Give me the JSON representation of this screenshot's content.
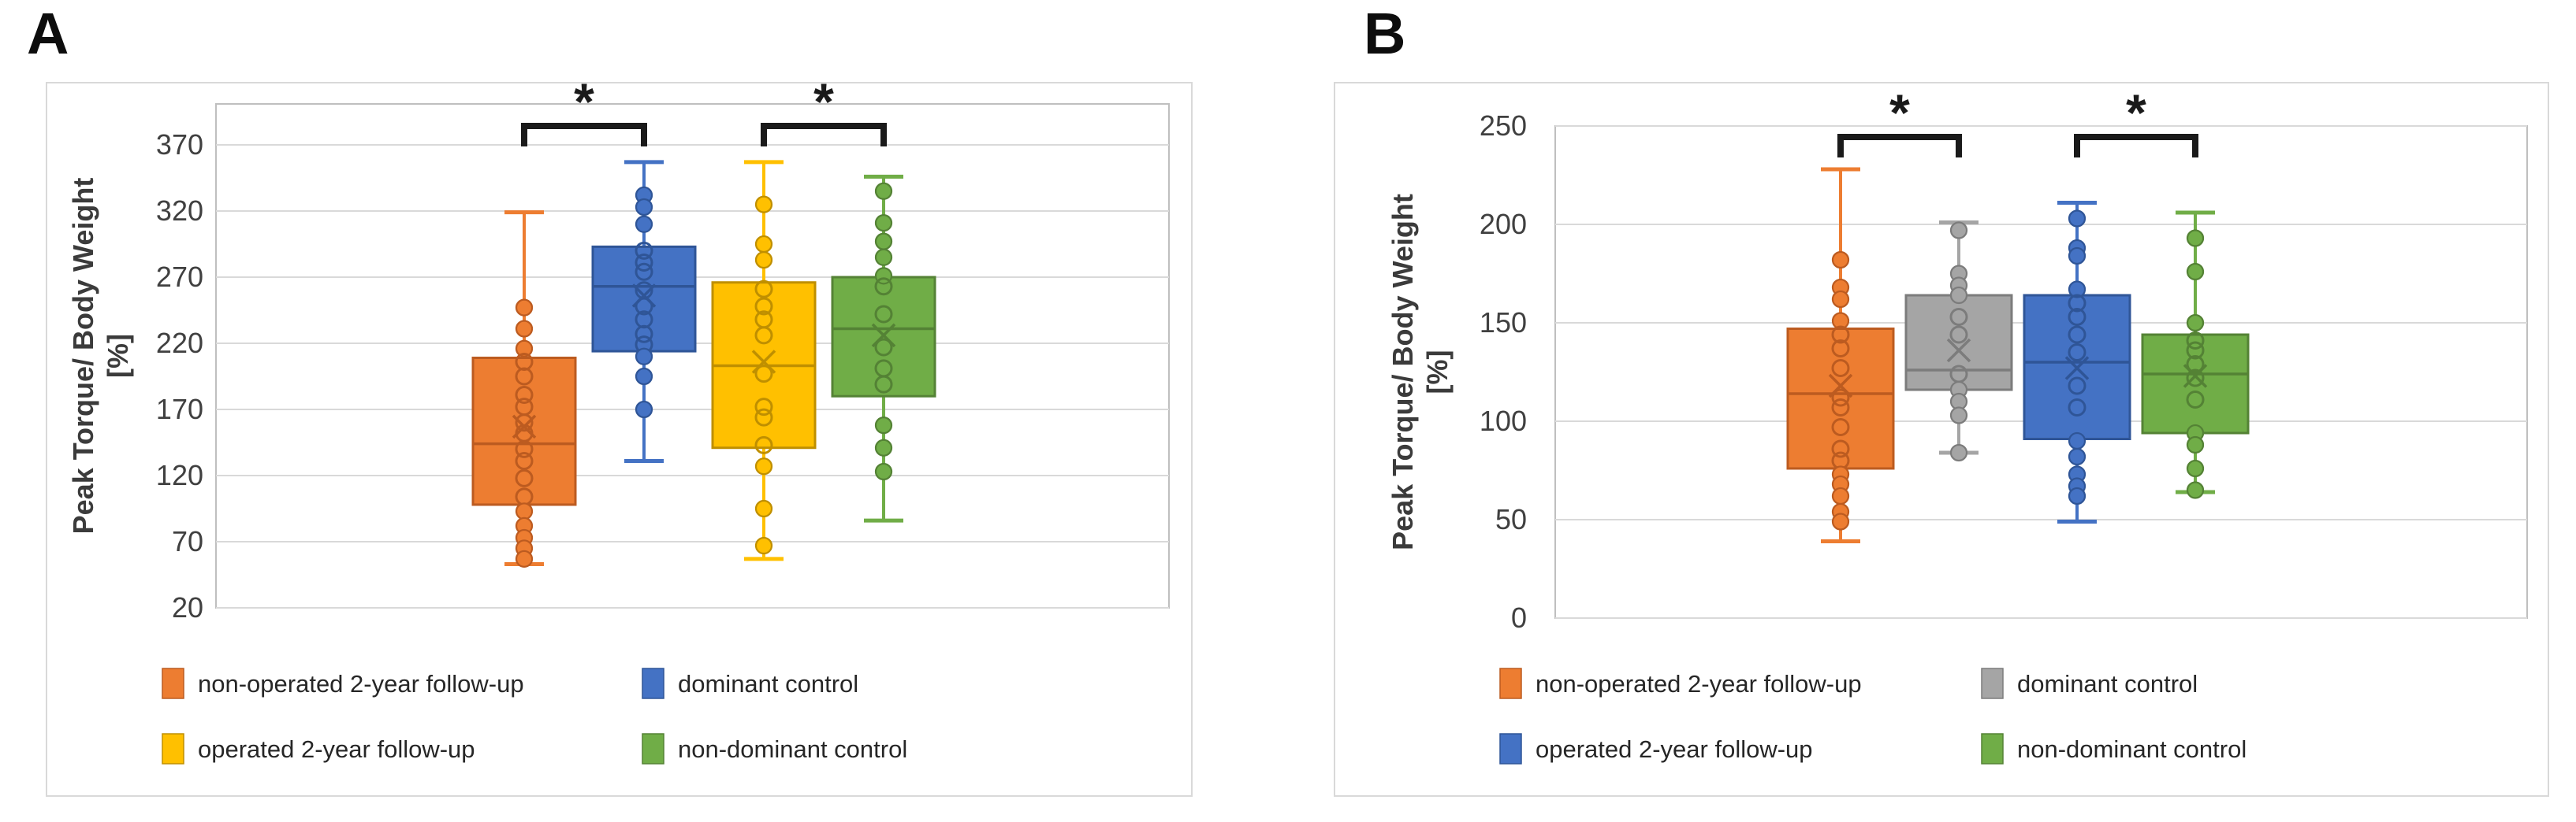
{
  "chart_data": [
    {
      "type": "boxplot",
      "panel_label": "A",
      "ylabel": "Peak Torque/ Body Weight",
      "ylabel_units": "[%]",
      "yticks": [
        370,
        320,
        270,
        220,
        170,
        120,
        70,
        20
      ],
      "ylim": [
        20,
        370
      ],
      "grid": true,
      "legend_position": "bottom",
      "series": [
        {
          "name": "non-operated 2-year follow-up",
          "fill": "#ED7D31",
          "stroke": "#BC5B20",
          "whisker_low": 53,
          "q1": 98,
          "median": 144,
          "mean": 157,
          "q3": 209,
          "whisker_high": 319,
          "points": [
            247,
            231,
            216,
            206,
            195,
            181,
            172,
            160,
            152,
            140,
            131,
            118,
            104,
            93,
            82,
            73,
            65,
            57
          ]
        },
        {
          "name": "dominant control",
          "fill": "#4472C4",
          "stroke": "#2F5597",
          "whisker_low": 131,
          "q1": 214,
          "median": 263,
          "mean": 256,
          "q3": 293,
          "whisker_high": 357,
          "points": [
            332,
            323,
            310,
            290,
            281,
            274,
            260,
            248,
            238,
            227,
            219,
            210,
            195,
            170
          ]
        },
        {
          "name": "operated 2-year follow-up",
          "fill": "#FFC000",
          "stroke": "#BF8F00",
          "whisker_low": 57,
          "q1": 141,
          "median": 203,
          "mean": 206,
          "q3": 266,
          "whisker_high": 357,
          "points": [
            325,
            295,
            283,
            261,
            248,
            238,
            226,
            197,
            172,
            164,
            143,
            127,
            95,
            67
          ]
        },
        {
          "name": "non-dominant control",
          "fill": "#70AD47",
          "stroke": "#548235",
          "whisker_low": 86,
          "q1": 180,
          "median": 231,
          "mean": 226,
          "q3": 270,
          "whisker_high": 346,
          "points": [
            335,
            311,
            297,
            285,
            271,
            263,
            242,
            217,
            201,
            189,
            158,
            141,
            123
          ]
        }
      ],
      "significance_brackets": [
        {
          "between": [
            0,
            1
          ],
          "label": "*"
        },
        {
          "between": [
            2,
            3
          ],
          "label": "*"
        }
      ],
      "legend_rows": [
        [
          0,
          1
        ],
        [
          2,
          3
        ]
      ]
    },
    {
      "type": "boxplot",
      "panel_label": "B",
      "ylabel": "Peak Torque/ Body Weight",
      "ylabel_units": "[%]",
      "yticks": [
        250,
        200,
        150,
        100,
        50,
        0
      ],
      "ylim": [
        0,
        250
      ],
      "grid": true,
      "legend_position": "bottom",
      "series": [
        {
          "name": "non-operated 2-year follow-up",
          "fill": "#ED7D31",
          "stroke": "#BC5B20",
          "whisker_low": 39,
          "q1": 76,
          "median": 114,
          "mean": 118,
          "q3": 147,
          "whisker_high": 228,
          "points": [
            182,
            168,
            162,
            151,
            144,
            137,
            127,
            112,
            107,
            97,
            86,
            80,
            73,
            68,
            62,
            54,
            49
          ]
        },
        {
          "name": "dominant control",
          "fill": "#A5A5A5",
          "stroke": "#7C7C7C",
          "whisker_low": 84,
          "q1": 116,
          "median": 126,
          "mean": 136,
          "q3": 164,
          "whisker_high": 201,
          "points": [
            197,
            175,
            169,
            164,
            153,
            144,
            124,
            116,
            110,
            103,
            84
          ]
        },
        {
          "name": "operated 2-year follow-up",
          "fill": "#4472C4",
          "stroke": "#2F5597",
          "whisker_low": 49,
          "q1": 91,
          "median": 130,
          "mean": 127,
          "q3": 164,
          "whisker_high": 211,
          "points": [
            203,
            188,
            184,
            167,
            160,
            153,
            144,
            135,
            118,
            107,
            90,
            82,
            73,
            67,
            62
          ]
        },
        {
          "name": "non-dominant control",
          "fill": "#70AD47",
          "stroke": "#548235",
          "whisker_low": 64,
          "q1": 94,
          "median": 124,
          "mean": 123,
          "q3": 144,
          "whisker_high": 206,
          "points": [
            193,
            176,
            150,
            141,
            136,
            129,
            122,
            111,
            94,
            88,
            76,
            65
          ]
        }
      ],
      "significance_brackets": [
        {
          "between": [
            0,
            1
          ],
          "label": "*"
        },
        {
          "between": [
            2,
            3
          ],
          "label": "*"
        }
      ],
      "legend_rows": [
        [
          0,
          1
        ],
        [
          2,
          3
        ]
      ]
    }
  ],
  "styles": {
    "gridline_color": "#d9d9d9",
    "plot_border_color": "#bfbfbf",
    "chartbox_border_color": "#d9d9d9",
    "tick_label_color": "#404040",
    "axis_title_color": "#3b3b3b",
    "legend_text_color": "#262626",
    "bracket_color": "#1a1a1a"
  }
}
